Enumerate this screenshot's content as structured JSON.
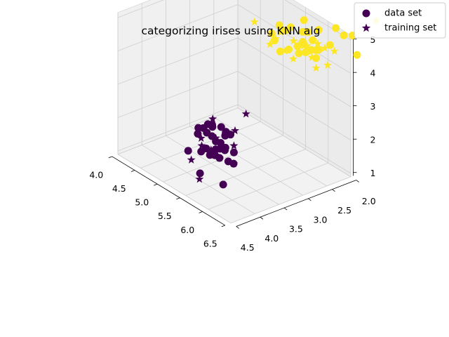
{
  "chart_data": {
    "type": "scatter",
    "projection": "3d",
    "title": "categorizing irises using KNN alg",
    "xlabel": "",
    "ylabel": "",
    "zlabel": "",
    "x_ticks": [
      "6.5",
      "6.0",
      "5.5",
      "5.0",
      "4.5",
      "4.0"
    ],
    "y_ticks": [
      "4.5",
      "4.0",
      "3.5",
      "3.0",
      "2.5",
      "2.0"
    ],
    "z_ticks": [
      "1",
      "2",
      "3",
      "4",
      "5"
    ],
    "grid": true,
    "legend": {
      "placement": "top-right",
      "entries": [
        {
          "label": "data set",
          "marker": "circle"
        },
        {
          "label": "training set",
          "marker": "star"
        }
      ]
    },
    "colors": {
      "class_0": "#440154",
      "class_1": "#fde725"
    },
    "series": [
      {
        "name": "data set",
        "marker": "circle",
        "points": [
          [
            4.4,
            3.0,
            1.3,
            0
          ],
          [
            4.6,
            3.4,
            1.4,
            0
          ],
          [
            4.8,
            3.0,
            1.4,
            0
          ],
          [
            4.8,
            3.4,
            1.6,
            0
          ],
          [
            5.0,
            3.6,
            1.4,
            0
          ],
          [
            5.0,
            3.4,
            1.5,
            0
          ],
          [
            5.1,
            3.5,
            1.4,
            0
          ],
          [
            5.1,
            3.8,
            1.5,
            0
          ],
          [
            5.2,
            3.4,
            1.4,
            0
          ],
          [
            5.4,
            3.9,
            1.7,
            0
          ],
          [
            5.4,
            3.4,
            1.5,
            0
          ],
          [
            5.5,
            4.2,
            1.4,
            0
          ],
          [
            5.7,
            3.8,
            1.7,
            0
          ],
          [
            5.8,
            4.0,
            1.2,
            0
          ],
          [
            4.9,
            3.1,
            1.5,
            0
          ],
          [
            5.0,
            3.3,
            1.4,
            0
          ],
          [
            4.7,
            3.2,
            1.3,
            0
          ],
          [
            5.3,
            3.7,
            1.5,
            0
          ],
          [
            4.6,
            3.1,
            1.5,
            0
          ],
          [
            5.1,
            3.3,
            1.7,
            0
          ],
          [
            4.5,
            3.0,
            1.3,
            0
          ],
          [
            4.4,
            3.2,
            1.3,
            0
          ],
          [
            4.8,
            3.1,
            1.6,
            0
          ],
          [
            5.0,
            3.2,
            1.2,
            0
          ],
          [
            4.3,
            3.0,
            1.1,
            0
          ],
          [
            5.5,
            3.5,
            1.3,
            0
          ],
          [
            5.2,
            3.5,
            1.5,
            0
          ],
          [
            4.9,
            3.0,
            1.4,
            0
          ],
          [
            5.4,
            3.7,
            1.5,
            0
          ],
          [
            4.6,
            3.6,
            1.0,
            0
          ],
          [
            6.3,
            3.3,
            6.0,
            1
          ],
          [
            5.8,
            2.7,
            5.1,
            1
          ],
          [
            7.1,
            3.0,
            5.9,
            1
          ],
          [
            6.5,
            3.0,
            5.8,
            1
          ],
          [
            7.6,
            3.0,
            6.6,
            1
          ],
          [
            7.3,
            2.9,
            6.3,
            1
          ],
          [
            6.7,
            2.5,
            5.8,
            1
          ],
          [
            7.2,
            3.6,
            6.1,
            1
          ],
          [
            6.4,
            2.7,
            5.3,
            1
          ],
          [
            6.8,
            3.0,
            5.5,
            1
          ],
          [
            5.7,
            2.5,
            5.0,
            1
          ],
          [
            6.4,
            3.2,
            5.3,
            1
          ],
          [
            6.5,
            3.0,
            5.5,
            1
          ],
          [
            7.7,
            3.8,
            6.7,
            1
          ],
          [
            6.0,
            2.2,
            5.0,
            1
          ],
          [
            6.9,
            3.2,
            5.7,
            1
          ],
          [
            5.6,
            2.8,
            4.9,
            1
          ],
          [
            6.3,
            2.7,
            4.9,
            1
          ],
          [
            6.7,
            3.3,
            5.7,
            1
          ],
          [
            6.2,
            2.8,
            4.8,
            1
          ],
          [
            6.4,
            2.8,
            5.6,
            1
          ],
          [
            6.1,
            2.6,
            5.6,
            1
          ],
          [
            7.7,
            3.0,
            6.1,
            1
          ],
          [
            6.3,
            3.4,
            5.6,
            1
          ],
          [
            6.0,
            3.0,
            4.8,
            1
          ],
          [
            6.9,
            3.1,
            5.4,
            1
          ]
        ]
      },
      {
        "name": "training set",
        "marker": "star",
        "points": [
          [
            4.9,
            3.6,
            1.4,
            0
          ],
          [
            4.4,
            2.9,
            1.4,
            0
          ],
          [
            4.9,
            3.1,
            1.5,
            0
          ],
          [
            5.4,
            3.7,
            1.5,
            0
          ],
          [
            4.8,
            3.4,
            1.6,
            0
          ],
          [
            4.8,
            3.0,
            1.4,
            0
          ],
          [
            5.7,
            4.4,
            1.5,
            0
          ],
          [
            5.1,
            3.8,
            1.9,
            0
          ],
          [
            5.0,
            3.5,
            1.3,
            0
          ],
          [
            4.5,
            2.3,
            1.3,
            0
          ],
          [
            5.1,
            3.7,
            1.5,
            0
          ],
          [
            5.4,
            3.4,
            1.7,
            0
          ],
          [
            5.0,
            3.0,
            1.6,
            0
          ],
          [
            4.7,
            3.2,
            1.6,
            0
          ],
          [
            5.2,
            4.1,
            1.5,
            0
          ],
          [
            5.1,
            3.5,
            1.4,
            0
          ],
          [
            5.3,
            3.7,
            1.5,
            0
          ],
          [
            5.5,
            3.5,
            1.3,
            0
          ],
          [
            4.4,
            3.0,
            1.3,
            0
          ],
          [
            5.0,
            3.4,
            1.6,
            0
          ],
          [
            6.5,
            3.2,
            5.1,
            1
          ],
          [
            6.4,
            2.8,
            5.6,
            1
          ],
          [
            5.7,
            2.5,
            5.0,
            1
          ],
          [
            5.8,
            2.8,
            5.1,
            1
          ],
          [
            6.4,
            3.1,
            5.5,
            1
          ],
          [
            6.3,
            2.5,
            5.0,
            1
          ],
          [
            6.7,
            3.0,
            5.2,
            1
          ],
          [
            7.2,
            3.2,
            6.0,
            1
          ],
          [
            6.2,
            3.4,
            5.4,
            1
          ],
          [
            5.9,
            3.0,
            5.1,
            1
          ],
          [
            6.9,
            3.1,
            5.1,
            1
          ],
          [
            7.9,
            3.8,
            6.4,
            1
          ],
          [
            6.3,
            2.8,
            5.1,
            1
          ],
          [
            6.1,
            3.0,
            4.9,
            1
          ],
          [
            6.4,
            2.7,
            5.3,
            1
          ],
          [
            4.9,
            2.5,
            4.5,
            1
          ],
          [
            6.0,
            2.2,
            5.0,
            1
          ],
          [
            7.7,
            2.6,
            6.9,
            1
          ],
          [
            7.2,
            3.0,
            5.8,
            1
          ],
          [
            6.7,
            3.1,
            5.6,
            1
          ]
        ]
      }
    ]
  }
}
